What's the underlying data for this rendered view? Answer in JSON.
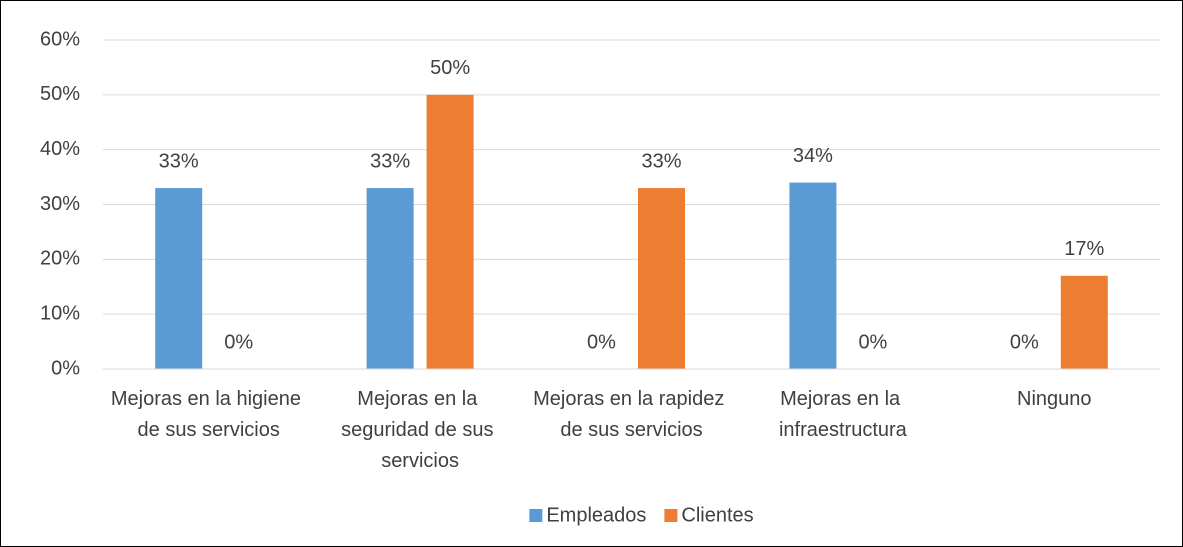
{
  "chart_data": {
    "type": "bar",
    "categories": [
      "Mejoras en la higiene de sus servicios",
      "Mejoras en la seguridad de sus servicios",
      "Mejoras en la rapidez de sus servicios",
      "Mejoras en la infraestructura",
      "Ninguno"
    ],
    "series": [
      {
        "name": "Empleados",
        "color": "#5b9bd5",
        "values": [
          33,
          33,
          0,
          34,
          0
        ],
        "value_labels": [
          "33%",
          "33%",
          "0%",
          "34%",
          "0%"
        ]
      },
      {
        "name": "Clientes",
        "color": "#ed7d31",
        "values": [
          0,
          50,
          33,
          0,
          17
        ],
        "value_labels": [
          "0%",
          "50%",
          "33%",
          "0%",
          "17%"
        ]
      }
    ],
    "ylim": [
      0,
      60
    ],
    "yticks": [
      {
        "value": 0,
        "label": "0%"
      },
      {
        "value": 10,
        "label": "10%"
      },
      {
        "value": 20,
        "label": "20%"
      },
      {
        "value": 30,
        "label": "30%"
      },
      {
        "value": 40,
        "label": "40%"
      },
      {
        "value": 50,
        "label": "50%"
      },
      {
        "value": 60,
        "label": "60%"
      }
    ],
    "grid": true,
    "legend": "bottom"
  }
}
